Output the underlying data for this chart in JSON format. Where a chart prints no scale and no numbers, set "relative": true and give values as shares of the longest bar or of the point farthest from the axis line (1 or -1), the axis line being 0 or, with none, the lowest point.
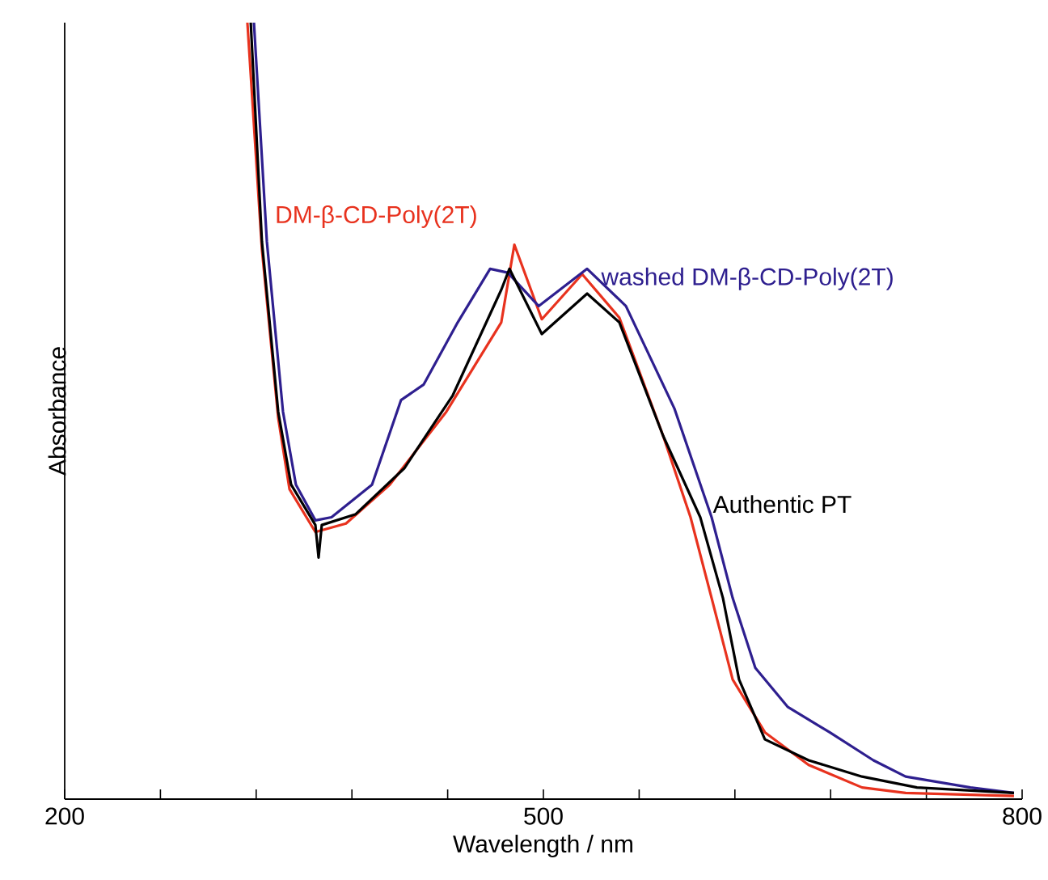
{
  "chart_data": {
    "type": "line",
    "xlabel": "Wavelength / nm",
    "ylabel": "Absorbance",
    "relative": true,
    "xlim": [
      200,
      800
    ],
    "xticks": [
      200,
      {
        "value": 260,
        "label": null
      },
      {
        "value": 320,
        "label": null
      },
      {
        "value": 380,
        "label": null
      },
      {
        "value": 440,
        "label": null
      },
      500,
      {
        "value": 560,
        "label": null
      },
      {
        "value": 620,
        "label": null
      },
      {
        "value": 680,
        "label": null
      },
      {
        "value": 740,
        "label": null
      },
      800
    ],
    "grid": false,
    "legend": false,
    "marker": "none",
    "line_style": "solid",
    "series": [
      {
        "name": "DM-β-CD-Poly(2T)",
        "color": "#e8321e",
        "x": [
          314.5,
          323.6,
          333.8,
          340.9,
          357.1,
          376.3,
          403.7,
          439.2,
          473.6,
          481.8,
          499,
          524.3,
          547.6,
          575,
          592.2,
          605.4,
          618.6,
          638.8,
          666.2,
          699.7,
          727,
          794.9
        ],
        "values": [
          1,
          0.708,
          0.491,
          0.399,
          0.344,
          0.355,
          0.405,
          0.499,
          0.614,
          0.714,
          0.618,
          0.676,
          0.62,
          0.468,
          0.363,
          0.259,
          0.154,
          0.086,
          0.044,
          0.015,
          0.008,
          0.004
        ]
      },
      {
        "name": "washed DM-β-CD-Poly(2T)",
        "color": "#2e1f8f",
        "x": [
          318.6,
          326.7,
          336.8,
          344.9,
          357.1,
          367.2,
          392.6,
          410.8,
          425,
          446.3,
          466.6,
          477.7,
          497,
          527.4,
          551.7,
          582.1,
          605.4,
          618.6,
          632.8,
          653,
          679.4,
          706.8,
          727,
          767.6,
          794.9
        ],
        "values": [
          1,
          0.718,
          0.499,
          0.405,
          0.359,
          0.363,
          0.405,
          0.514,
          0.534,
          0.614,
          0.683,
          0.678,
          0.635,
          0.683,
          0.635,
          0.503,
          0.363,
          0.259,
          0.169,
          0.119,
          0.086,
          0.05,
          0.029,
          0.015,
          0.008
        ]
      },
      {
        "name": "Authentic PT",
        "color": "#000000",
        "x": [
          316.6,
          323.6,
          333.8,
          341.9,
          357.1,
          359.1,
          361.1,
          382.4,
          412.8,
          443.2,
          473.6,
          478.7,
          499,
          527.4,
          547.6,
          575,
          598.3,
          612.5,
          622.6,
          638.8,
          666.2,
          699.7,
          734.1,
          794.9
        ],
        "values": [
          1,
          0.718,
          0.499,
          0.405,
          0.353,
          0.311,
          0.353,
          0.367,
          0.426,
          0.52,
          0.656,
          0.683,
          0.599,
          0.651,
          0.614,
          0.468,
          0.363,
          0.259,
          0.154,
          0.077,
          0.05,
          0.029,
          0.015,
          0.008
        ]
      }
    ]
  }
}
